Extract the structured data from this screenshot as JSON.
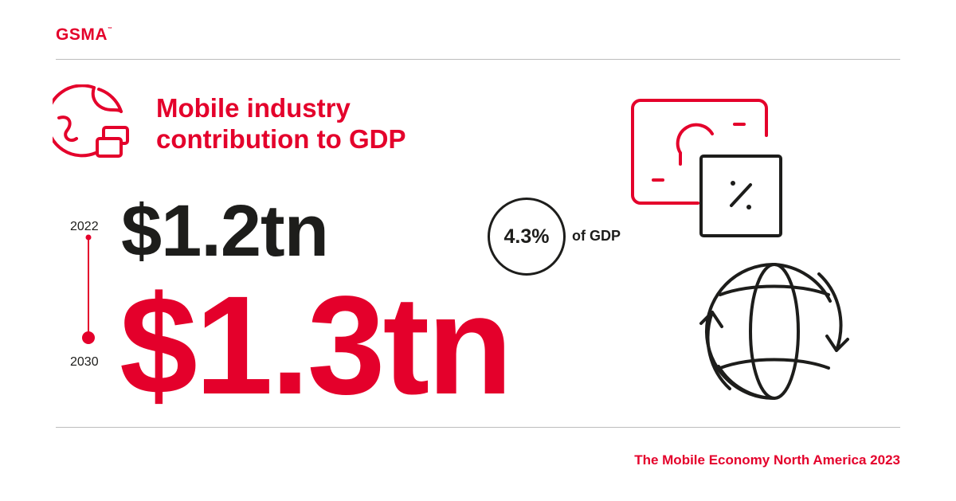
{
  "brand": {
    "logo_text": "GSMA",
    "trademark": "™"
  },
  "title": {
    "line1": "Mobile industry",
    "line2": "contribution to GDP"
  },
  "timeline": {
    "start_year": "2022",
    "start_value": "$1.2tn",
    "end_year": "2030",
    "end_value": "$1.3tn"
  },
  "gdp_share": {
    "value": "4.3%",
    "label": "of GDP"
  },
  "footer": {
    "text": "The Mobile Economy North America 2023"
  },
  "colors": {
    "brand_red": "#e4002b",
    "text_dark": "#1d1d1b",
    "rule": "#bdbdbd"
  },
  "icons": {
    "title_icon": "globe-cards-icon",
    "right_top_icon": "money-percent-icon",
    "right_bottom_icon": "globe-rotate-icon"
  }
}
